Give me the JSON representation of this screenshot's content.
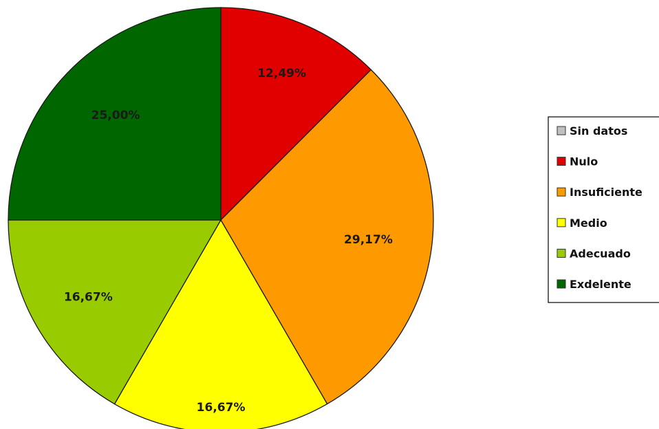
{
  "chart_data": {
    "type": "pie",
    "title": "",
    "legend_position": "right",
    "legend": [
      {
        "label": "Sin datos",
        "color": "#c0c0c0"
      },
      {
        "label": "Nulo",
        "color": "#e00000"
      },
      {
        "label": "Insuficiente",
        "color": "#ff9900"
      },
      {
        "label": "Medio",
        "color": "#ffff00"
      },
      {
        "label": "Adecuado",
        "color": "#99cc00"
      },
      {
        "label": "Exdelente",
        "color": "#006600"
      }
    ],
    "slices": [
      {
        "category": "Nulo",
        "value": 12.49,
        "label": "12,49%",
        "color": "#e00000"
      },
      {
        "category": "Insuficiente",
        "value": 29.17,
        "label": "29,17%",
        "color": "#ff9900"
      },
      {
        "category": "Medio",
        "value": 16.67,
        "label": "16,67%",
        "color": "#ffff00"
      },
      {
        "category": "Adecuado",
        "value": 16.67,
        "label": "16,67%",
        "color": "#99cc00"
      },
      {
        "category": "Exdelente",
        "value": 25.0,
        "label": "25,00%",
        "color": "#006600"
      }
    ]
  }
}
